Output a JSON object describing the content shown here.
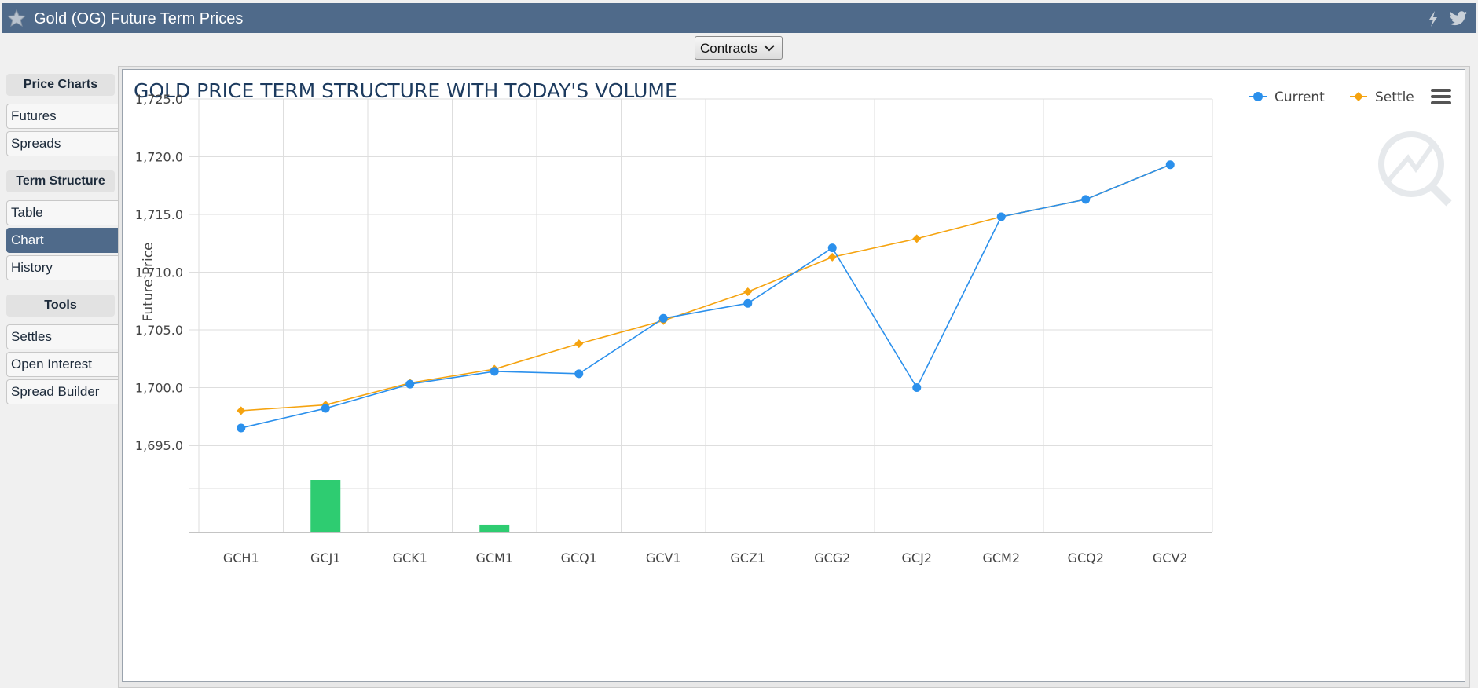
{
  "window": {
    "title": "Gold (OG) Future Term Prices"
  },
  "toolbar": {
    "contracts_label": "Contracts"
  },
  "sidebar": {
    "sections": [
      {
        "title": "Price Charts",
        "items": [
          "Futures",
          "Spreads"
        ]
      },
      {
        "title": "Term Structure",
        "items": [
          "Table",
          "Chart",
          "History"
        ]
      },
      {
        "title": "Tools",
        "items": [
          "Settles",
          "Open Interest",
          "Spread Builder"
        ]
      }
    ],
    "active_item": "Chart"
  },
  "colors": {
    "header": "#4f6a8a",
    "current": "#2b90ec",
    "settle": "#f5a30f",
    "volume": "#2ecc71",
    "title": "#1c3a5e"
  },
  "chart_data": {
    "type": "line",
    "title": "GOLD PRICE TERM STRUCTURE WITH TODAY'S VOLUME",
    "ylabel": "Future Price",
    "xlabel": "",
    "categories": [
      "GCH1",
      "GCJ1",
      "GCK1",
      "GCM1",
      "GCQ1",
      "GCV1",
      "GCZ1",
      "GCG2",
      "GCJ2",
      "GCM2",
      "GCQ2",
      "GCV2"
    ],
    "ylim": [
      1695,
      1725
    ],
    "yticks": [
      1725,
      1720,
      1715,
      1710,
      1705,
      1700,
      1695
    ],
    "yticklabels": [
      "1,725.0",
      "1,720.0",
      "1,715.0",
      "1,710.0",
      "1,705.0",
      "1,700.0",
      "1,695.0"
    ],
    "legend_position": "top-right",
    "grid": true,
    "series": [
      {
        "name": "Current",
        "marker": "circle",
        "values": [
          1696.5,
          1698.2,
          1700.3,
          1701.4,
          1701.2,
          1706.0,
          1707.3,
          1712.1,
          1700.0,
          1714.8,
          1716.3,
          1719.3
        ]
      },
      {
        "name": "Settle",
        "marker": "diamond",
        "values": [
          1698.0,
          1698.5,
          1700.4,
          1701.6,
          1703.8,
          1705.8,
          1708.3,
          1711.3,
          1712.9,
          1714.8,
          1716.3,
          1719.3
        ]
      }
    ],
    "volume": {
      "type": "bar",
      "values": [
        0,
        1.0,
        0,
        0.15,
        0,
        0,
        0,
        0,
        0,
        0,
        0,
        0
      ]
    }
  }
}
